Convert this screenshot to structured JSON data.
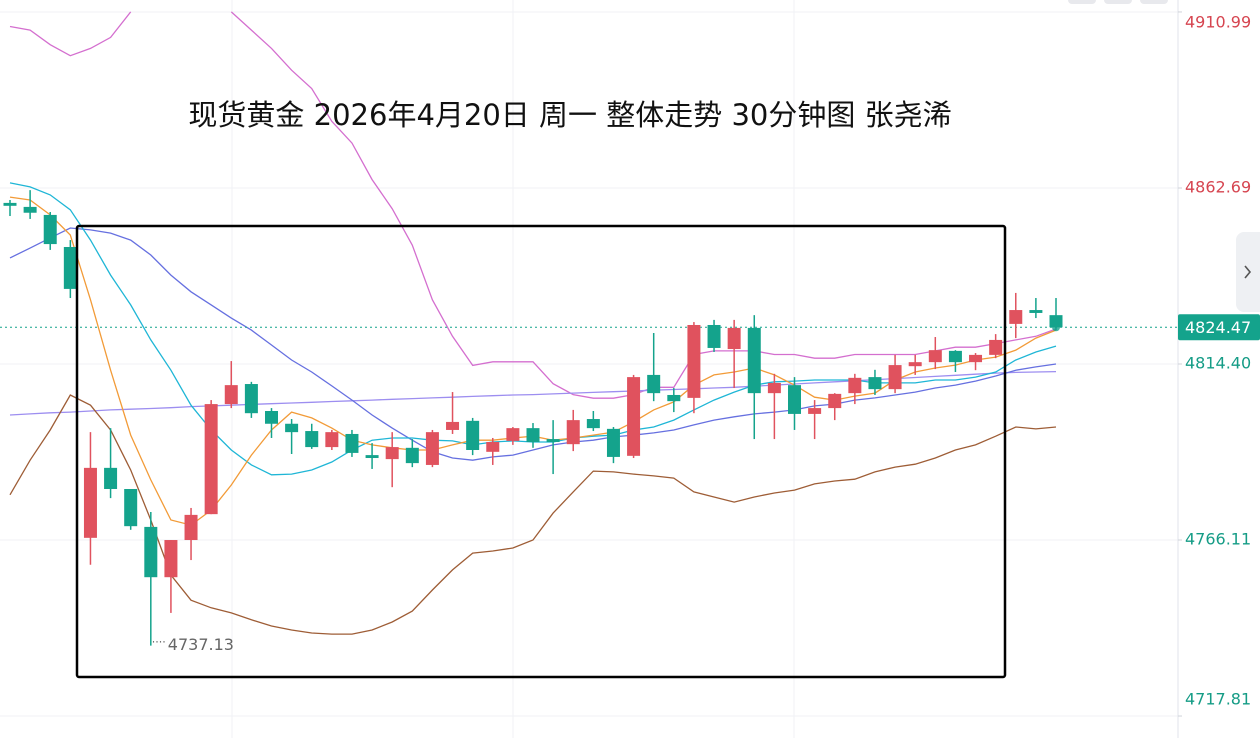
{
  "chart_data": {
    "type": "candlestick",
    "title": "现货黄金 2026年4月20日 周一 整体走势 30分钟图 张尧浠",
    "up_color": "#e0525e",
    "down_color": "#14a38c",
    "ylim": [
      4711.78,
      4914.27
    ],
    "yticks": [
      4910.99,
      4862.69,
      {
        "value": 4814.4,
        "label": "4814.40"
      },
      4766.11,
      4717.81
    ],
    "grid": true,
    "candles": {
      "open": [
        4858.6,
        4857.5,
        4855.3,
        4846.5,
        4766.7,
        4785.9,
        4780.1,
        4769.7,
        4755.9,
        4766.1,
        4773.2,
        4803.4,
        4808.9,
        4801.5,
        4798.0,
        4796.0,
        4791.6,
        4795.2,
        4789.4,
        4788.3,
        4791.4,
        4786.7,
        4796.3,
        4798.8,
        4790.3,
        4793.3,
        4796.8,
        4793.8,
        4792.4,
        4799.3,
        4796.6,
        4789.2,
        4811.4,
        4805.9,
        4805.1,
        4825.1,
        4818.5,
        4824.3,
        4806.4,
        4808.6,
        4800.7,
        4802.3,
        4806.4,
        4810.8,
        4807.5,
        4813.8,
        4814.9,
        4818.0,
        4814.9,
        4816.9,
        4825.4,
        4829.2,
        4827.8
      ],
      "high": [
        4859.4,
        4862.1,
        4856.1,
        4848.4,
        4795.7,
        4796.8,
        4780.1,
        4773.8,
        4766.1,
        4774.9,
        4804.5,
        4815.2,
        4809.5,
        4802.3,
        4799.3,
        4798.0,
        4796.3,
        4796.3,
        4792.7,
        4795.7,
        4793.8,
        4796.3,
        4806.7,
        4799.6,
        4794.1,
        4797.1,
        4798.2,
        4799.0,
        4801.8,
        4801.5,
        4797.1,
        4811.4,
        4822.9,
        4807.8,
        4825.9,
        4826.5,
        4826.5,
        4827.8,
        4811.7,
        4810.8,
        4804.5,
        4806.4,
        4811.7,
        4812.8,
        4816.9,
        4816.9,
        4821.8,
        4818.2,
        4817.4,
        4822.6,
        4833.9,
        4832.5,
        4832.5
      ],
      "low": [
        4855.0,
        4854.2,
        4845.7,
        4832.5,
        4759.3,
        4777.6,
        4768.9,
        4737.13,
        4746.1,
        4760.6,
        4773.2,
        4802.3,
        4799.6,
        4794.1,
        4789.7,
        4791.1,
        4790.8,
        4788.9,
        4785.6,
        4780.6,
        4786.1,
        4786.1,
        4795.2,
        4789.4,
        4786.7,
        4792.2,
        4791.4,
        4784.2,
        4790.5,
        4796.0,
        4787.2,
        4788.6,
        4804.2,
        4801.2,
        4800.9,
        4817.7,
        4807.8,
        4793.8,
        4793.8,
        4796.3,
        4793.8,
        4799.0,
        4803.4,
        4805.9,
        4806.4,
        4811.4,
        4813.0,
        4812.2,
        4812.7,
        4816.0,
        4821.5,
        4827.0,
        4823.7
      ],
      "close": [
        4857.8,
        4855.9,
        4847.3,
        4835.0,
        4785.9,
        4780.1,
        4769.9,
        4755.9,
        4766.1,
        4773.0,
        4803.4,
        4808.6,
        4800.9,
        4798.0,
        4795.7,
        4791.6,
        4795.7,
        4790.0,
        4788.6,
        4791.6,
        4787.2,
        4795.7,
        4798.5,
        4790.8,
        4793.0,
        4796.8,
        4793.0,
        4793.0,
        4799.0,
        4796.8,
        4788.9,
        4810.8,
        4806.4,
        4804.2,
        4825.1,
        4818.8,
        4824.3,
        4806.4,
        4809.2,
        4800.7,
        4802.3,
        4806.2,
        4810.6,
        4807.5,
        4814.1,
        4814.9,
        4818.2,
        4814.9,
        4816.9,
        4821.0,
        4829.2,
        4828.4,
        4824.47
      ]
    },
    "lines": [
      {
        "color": "#d46fcf",
        "values": [
          4907,
          4906,
          4902,
          4899,
          4901,
          4904,
          4911,
          null,
          null,
          null,
          null,
          4911,
          4906,
          4901,
          4895,
          4890,
          4881,
          4875,
          4865,
          4857,
          4847,
          4832,
          4822,
          4814,
          4815,
          4815,
          4815,
          4809,
          4806,
          4805,
          4805,
          4806,
          4808,
          4808,
          4817,
          4818,
          4818,
          4818,
          4817,
          4817,
          4816,
          4816,
          4817,
          4817,
          4817,
          4817,
          4818,
          4819,
          4819,
          4820,
          4821,
          4822,
          4824
        ]
      },
      {
        "color": "#9d8ef0",
        "values": [
          4800.4,
          4800.7,
          4801.0,
          4801.2,
          4801.5,
          4801.8,
          4802.0,
          4802.2,
          4802.4,
          4802.7,
          4802.9,
          4803.1,
          4803.3,
          4803.5,
          4803.7,
          4803.9,
          4804.1,
          4804.3,
          4804.5,
          4804.7,
          4804.9,
          4805.1,
          4805.3,
          4805.5,
          4805.7,
          4805.9,
          4806.0,
          4806.2,
          4806.4,
          4806.6,
          4806.8,
          4807.0,
          4807.2,
          4807.4,
          4807.6,
          4807.8,
          4808.0,
          4808.3,
          4808.6,
          4808.9,
          4809.2,
          4809.5,
          4809.8,
          4810.1,
          4810.4,
          4810.7,
          4811.0,
          4811.3,
          4811.6,
          4811.9,
          4812.1,
          4812.2,
          4812.3
        ]
      },
      {
        "color": "#6670e0",
        "values": [
          4843.5,
          4846.2,
          4849.0,
          4851.7,
          4851.2,
          4850.3,
          4848.4,
          4844.3,
          4838.8,
          4834.2,
          4830.6,
          4827.0,
          4823.7,
          4819.6,
          4815.5,
          4812.2,
          4808.4,
          4804.5,
          4800.4,
          4796.8,
          4793.5,
          4790.3,
          4788.6,
          4788.0,
          4788.9,
          4789.4,
          4790.8,
          4792.2,
          4793.0,
          4793.5,
          4794.4,
          4794.9,
          4795.5,
          4796.3,
          4797.7,
          4799.0,
          4799.9,
          4800.7,
          4801.2,
          4801.8,
          4802.9,
          4803.4,
          4804.5,
          4805.1,
          4805.9,
          4806.7,
          4807.8,
          4808.6,
          4809.7,
          4811.1,
          4812.7,
          4813.6,
          4814.4
        ]
      },
      {
        "color": "#1fb6d6",
        "values": [
          4864.1,
          4863.0,
          4860.8,
          4856.7,
          4848.4,
          4838.8,
          4830.6,
          4821.0,
          4812.7,
          4803.1,
          4796.3,
          4790.8,
          4786.7,
          4784.0,
          4784.2,
          4785.3,
          4787.5,
          4790.8,
          4793.5,
          4794.1,
          4794.1,
          4793.5,
          4793.3,
          4792.2,
          4793.0,
          4793.3,
          4793.0,
          4793.0,
          4794.1,
          4794.6,
          4794.9,
          4796.3,
          4797.1,
          4799.0,
          4801.8,
          4804.5,
          4806.7,
          4808.6,
          4809.5,
          4809.7,
          4810.0,
          4810.0,
          4810.0,
          4809.2,
          4809.2,
          4809.2,
          4810.0,
          4810.0,
          4810.8,
          4812.2,
          4815.5,
          4817.7,
          4819.3
        ]
      },
      {
        "color": "#f29b38",
        "values": [
          4860.2,
          4859.4,
          4855.3,
          4849.8,
          4832.0,
          4812.7,
          4794.9,
          4782.6,
          4771.6,
          4770.2,
          4774.3,
          4781.2,
          4789.4,
          4796.3,
          4801.2,
          4799.6,
          4796.8,
          4793.5,
          4792.2,
          4791.4,
          4790.8,
          4790.8,
          4792.2,
          4793.5,
          4793.5,
          4794.1,
          4794.6,
          4793.5,
          4794.1,
          4794.9,
          4795.7,
          4798.5,
          4801.8,
          4804.0,
          4808.6,
          4811.4,
          4812.2,
          4813.3,
          4811.4,
          4808.6,
          4805.3,
          4804.5,
          4805.6,
          4806.4,
          4810.0,
          4812.2,
          4813.3,
          4814.1,
          4815.5,
          4816.3,
          4818.2,
          4821.5,
          4823.7
        ]
      },
      {
        "color": "#9e5d36",
        "values": [
          4778.5,
          4788.0,
          4796.3,
          4805.9,
          4803.1,
          4796.3,
          4785.3,
          4771.6,
          4756.5,
          4749.6,
          4747.5,
          4746.1,
          4744.2,
          4742.5,
          4741.4,
          4740.6,
          4740.3,
          4740.3,
          4741.4,
          4743.6,
          4746.6,
          4752.4,
          4757.9,
          4762.5,
          4763.1,
          4763.9,
          4766.1,
          4773.5,
          4779.3,
          4785.0,
          4784.8,
          4784.2,
          4783.7,
          4783.1,
          4779.3,
          4777.9,
          4776.5,
          4777.9,
          4779.0,
          4779.8,
          4781.5,
          4782.3,
          4782.8,
          4784.8,
          4786.1,
          4786.9,
          4788.6,
          4790.8,
          4792.2,
          4794.6,
          4797.1,
          4796.6,
          4797.1
        ]
      }
    ]
  }
}
